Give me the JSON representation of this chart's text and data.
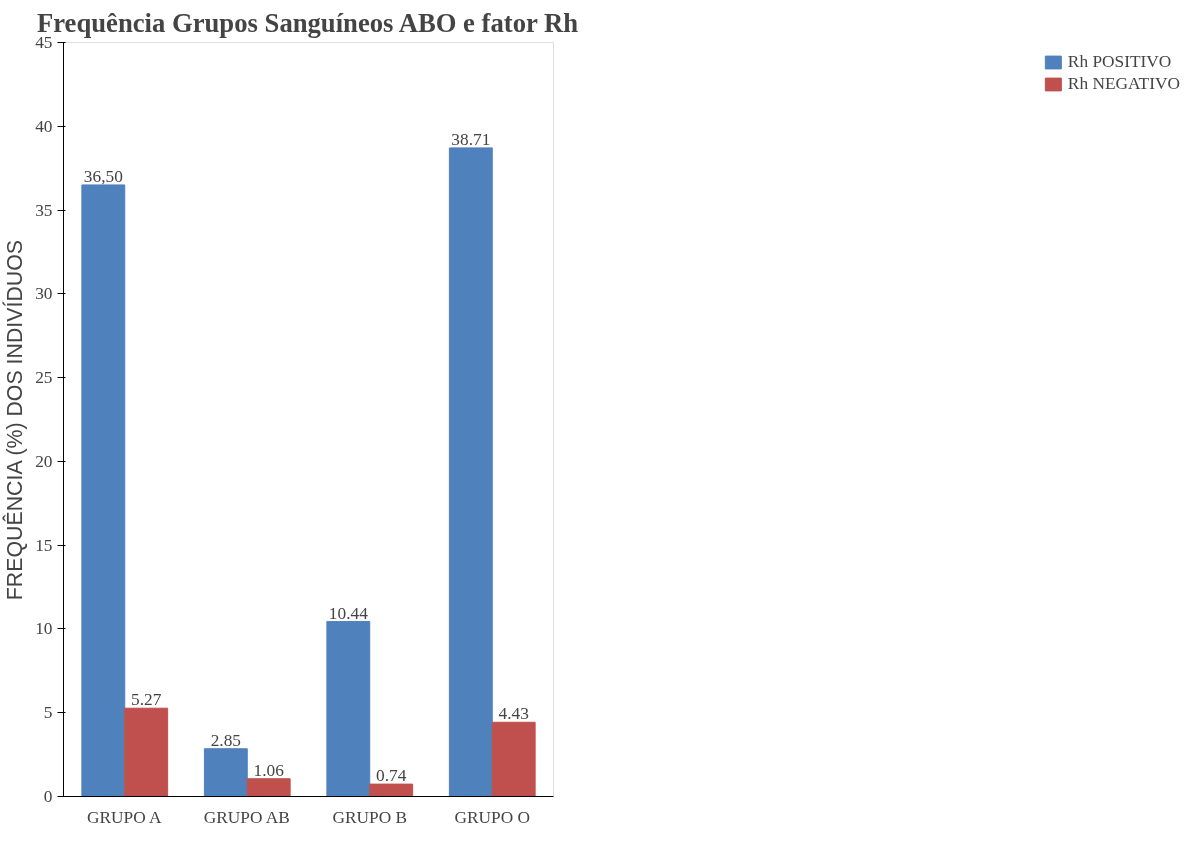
{
  "chart_data": {
    "type": "bar",
    "title": "Frequência Grupos Sanguíneos ABO e fator Rh",
    "ylabel": "FREQUÊNCIA (%) DOS INDIVÍDUOS",
    "categories": [
      "GRUPO A",
      "GRUPO AB",
      "GRUPO B",
      "GRUPO O"
    ],
    "series": [
      {
        "name": "Rh POSITIVO",
        "color": "#4f81bd",
        "values": [
          36.5,
          2.85,
          10.44,
          38.71
        ],
        "value_labels": [
          "36,50",
          "2.85",
          "10.44",
          "38.71"
        ]
      },
      {
        "name": "Rh NEGATIVO",
        "color": "#c0504d",
        "values": [
          5.27,
          1.06,
          0.74,
          4.43
        ],
        "value_labels": [
          "5.27",
          "1.06",
          "0.74",
          "4.43"
        ]
      }
    ],
    "ylim": [
      0,
      45
    ],
    "yticks": [
      0,
      5,
      10,
      15,
      20,
      25,
      30,
      35,
      40,
      45
    ],
    "grid": false,
    "legend": "right"
  }
}
